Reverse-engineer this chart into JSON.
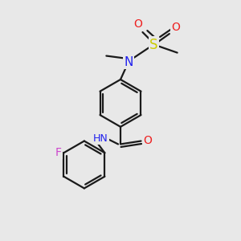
{
  "bg_color": "#e8e8e8",
  "bond_color": "#1a1a1a",
  "bond_width": 1.6,
  "atom_colors": {
    "N": "#2020ee",
    "O": "#ee2020",
    "S": "#cccc00",
    "F": "#cc44cc",
    "H": "#44aaaa",
    "C": "#1a1a1a"
  },
  "font_size": 9,
  "fig_size": [
    3.0,
    3.0
  ],
  "dpi": 100
}
